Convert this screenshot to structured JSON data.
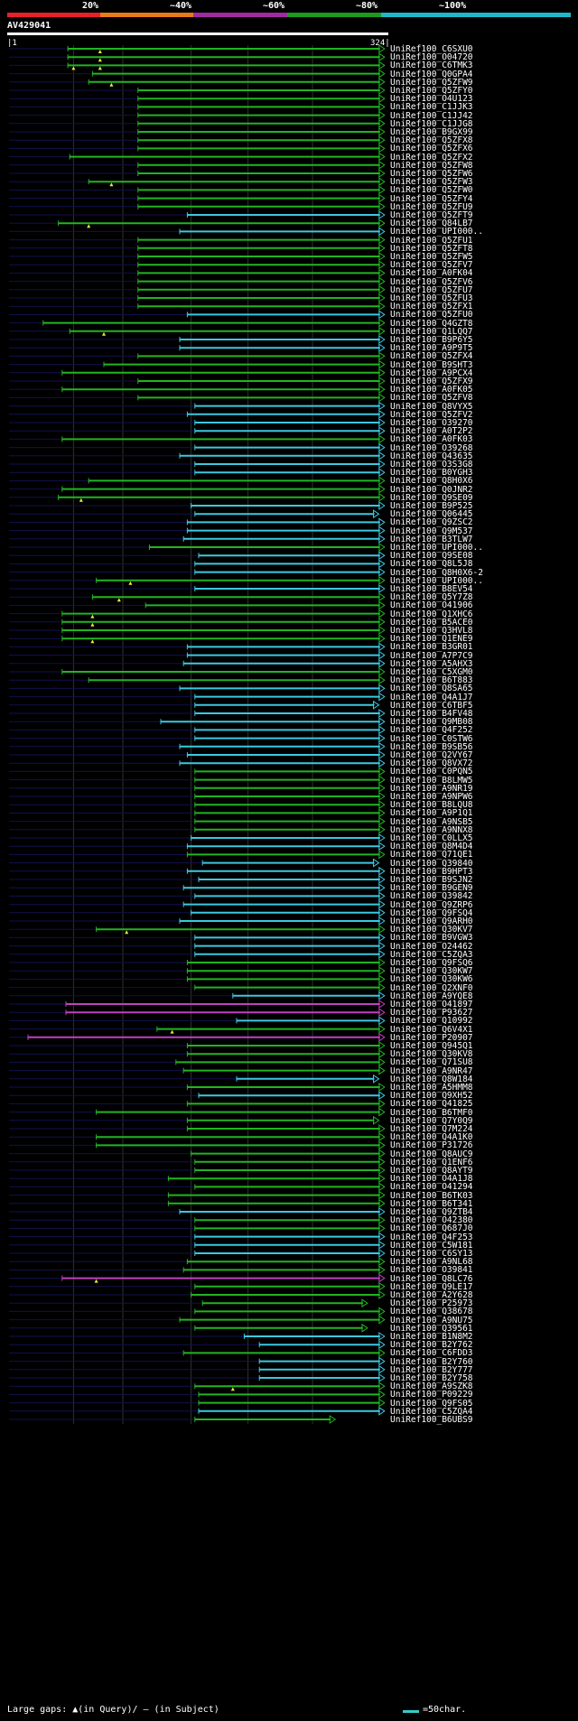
{
  "legend": {
    "labels": [
      "20%",
      "~40%",
      "~60%",
      "~80%",
      "~100%"
    ],
    "colors": [
      "#e8202a",
      "#e87a1a",
      "#a02aa0",
      "#1e9a1e",
      "#20b8c8"
    ]
  },
  "query": {
    "name": "AV429041",
    "scale_start": "1",
    "scale_end": "324"
  },
  "footer": {
    "gaps_text": "Large gaps: ▲(in Query)/ — (in Subject)",
    "key_text": "=50char."
  },
  "hits": [
    {
      "label": "UniRef100_C6SXU0",
      "s": 0.155,
      "e": 0.99,
      "c": "g",
      "m": [
        0.24
      ]
    },
    {
      "label": "UniRef100_O04720",
      "s": 0.155,
      "e": 0.99,
      "c": "g",
      "m": [
        0.24
      ]
    },
    {
      "label": "UniRef100_C6TMK3",
      "s": 0.155,
      "e": 0.99,
      "c": "g",
      "m": [
        0.17,
        0.24
      ]
    },
    {
      "label": "UniRef100_Q0GPA4",
      "s": 0.22,
      "e": 0.99,
      "c": "g"
    },
    {
      "label": "UniRef100_Q5ZFW9",
      "s": 0.21,
      "e": 0.99,
      "c": "g",
      "m": [
        0.27
      ]
    },
    {
      "label": "UniRef100_Q5ZFY0",
      "s": 0.34,
      "e": 0.99,
      "c": "g"
    },
    {
      "label": "UniRef100_O4U123",
      "s": 0.34,
      "e": 0.99,
      "c": "g"
    },
    {
      "label": "UniRef100_C1JJK3",
      "s": 0.34,
      "e": 0.99,
      "c": "g"
    },
    {
      "label": "UniRef100_C1JJ42",
      "s": 0.34,
      "e": 0.99,
      "c": "g"
    },
    {
      "label": "UniRef100_C1JJG8",
      "s": 0.34,
      "e": 0.99,
      "c": "g"
    },
    {
      "label": "UniRef100_B9GX99",
      "s": 0.34,
      "e": 0.99,
      "c": "g"
    },
    {
      "label": "UniRef100_Q5ZFX8",
      "s": 0.34,
      "e": 0.99,
      "c": "g"
    },
    {
      "label": "UniRef100_Q5ZFX6",
      "s": 0.34,
      "e": 0.99,
      "c": "g"
    },
    {
      "label": "UniRef100_Q5ZFX2",
      "s": 0.16,
      "e": 0.99,
      "c": "g"
    },
    {
      "label": "UniRef100_Q5ZFW8",
      "s": 0.34,
      "e": 0.99,
      "c": "g"
    },
    {
      "label": "UniRef100_Q5ZFW6",
      "s": 0.34,
      "e": 0.99,
      "c": "g"
    },
    {
      "label": "UniRef100_Q5ZFW3",
      "s": 0.21,
      "e": 0.99,
      "c": "g",
      "m": [
        0.27
      ]
    },
    {
      "label": "UniRef100_Q5ZFW0",
      "s": 0.34,
      "e": 0.99,
      "c": "g"
    },
    {
      "label": "UniRef100_Q5ZFY4",
      "s": 0.34,
      "e": 0.99,
      "c": "g"
    },
    {
      "label": "UniRef100_Q5ZFU9",
      "s": 0.34,
      "e": 0.99,
      "c": "g"
    },
    {
      "label": "UniRef100_Q5ZFT9",
      "s": 0.47,
      "e": 0.99,
      "c": "c"
    },
    {
      "label": "UniRef100_Q84LB7",
      "s": 0.13,
      "e": 0.99,
      "c": "g",
      "m": [
        0.21
      ]
    },
    {
      "label": "UniRef100_UPI000..",
      "s": 0.45,
      "e": 0.99,
      "c": "c"
    },
    {
      "label": "UniRef100_Q5ZFU1",
      "s": 0.34,
      "e": 0.99,
      "c": "g"
    },
    {
      "label": "UniRef100_Q5ZFT8",
      "s": 0.34,
      "e": 0.99,
      "c": "g"
    },
    {
      "label": "UniRef100_Q5ZFW5",
      "s": 0.34,
      "e": 0.99,
      "c": "g"
    },
    {
      "label": "UniRef100_Q5ZFV7",
      "s": 0.34,
      "e": 0.99,
      "c": "g"
    },
    {
      "label": "UniRef100_A0FK04",
      "s": 0.34,
      "e": 0.99,
      "c": "g"
    },
    {
      "label": "UniRef100_Q5ZFV6",
      "s": 0.34,
      "e": 0.99,
      "c": "g"
    },
    {
      "label": "UniRef100_Q5ZFU7",
      "s": 0.34,
      "e": 0.99,
      "c": "g"
    },
    {
      "label": "UniRef100_Q5ZFU3",
      "s": 0.34,
      "e": 0.99,
      "c": "g"
    },
    {
      "label": "UniRef100_Q5ZFX1",
      "s": 0.34,
      "e": 0.99,
      "c": "g"
    },
    {
      "label": "UniRef100_Q5ZFU0",
      "s": 0.47,
      "e": 0.99,
      "c": "c"
    },
    {
      "label": "UniRef100_Q4GZT8",
      "s": 0.09,
      "e": 0.99,
      "c": "g"
    },
    {
      "label": "UniRef100_Q1LQQ7",
      "s": 0.16,
      "e": 0.99,
      "c": "g",
      "m": [
        0.25
      ]
    },
    {
      "label": "UniRef100_B9P6Y5",
      "s": 0.45,
      "e": 0.99,
      "c": "c"
    },
    {
      "label": "UniRef100_A9P9T5",
      "s": 0.45,
      "e": 0.99,
      "c": "c"
    },
    {
      "label": "UniRef100_Q5ZFX4",
      "s": 0.34,
      "e": 0.99,
      "c": "g"
    },
    {
      "label": "UniRef100_B9SHT3",
      "s": 0.25,
      "e": 0.99,
      "c": "g"
    },
    {
      "label": "UniRef100_A9PCX4",
      "s": 0.14,
      "e": 0.99,
      "c": "g"
    },
    {
      "label": "UniRef100_Q5ZFX9",
      "s": 0.34,
      "e": 0.99,
      "c": "g"
    },
    {
      "label": "UniRef100_A0FK05",
      "s": 0.14,
      "e": 0.99,
      "c": "g"
    },
    {
      "label": "UniRef100_Q5ZFV8",
      "s": 0.34,
      "e": 0.99,
      "c": "g"
    },
    {
      "label": "UniRef100_Q8VYX5",
      "s": 0.49,
      "e": 0.99,
      "c": "c"
    },
    {
      "label": "UniRef100_Q5ZFV2",
      "s": 0.47,
      "e": 0.99,
      "c": "c"
    },
    {
      "label": "UniRef100_O39270",
      "s": 0.49,
      "e": 0.99,
      "c": "c"
    },
    {
      "label": "UniRef100_A0T2P2",
      "s": 0.49,
      "e": 0.99,
      "c": "c"
    },
    {
      "label": "UniRef100_A0FK03",
      "s": 0.14,
      "e": 0.99,
      "c": "g"
    },
    {
      "label": "UniRef100_O39268",
      "s": 0.49,
      "e": 0.99,
      "c": "c"
    },
    {
      "label": "UniRef100_Q43635",
      "s": 0.45,
      "e": 0.99,
      "c": "c"
    },
    {
      "label": "UniRef100_O3S3G8",
      "s": 0.49,
      "e": 0.99,
      "c": "c"
    },
    {
      "label": "UniRef100_B0YGH3",
      "s": 0.49,
      "e": 0.99,
      "c": "c"
    },
    {
      "label": "UniRef100_Q8H0X6",
      "s": 0.21,
      "e": 0.99,
      "c": "g"
    },
    {
      "label": "UniRef100_Q0JNR2",
      "s": 0.14,
      "e": 0.99,
      "c": "g"
    },
    {
      "label": "UniRef100_Q9SE09",
      "s": 0.13,
      "e": 0.99,
      "c": "g",
      "m": [
        0.19
      ]
    },
    {
      "label": "UniRef100_B9P525",
      "s": 0.48,
      "e": 0.99,
      "c": "c"
    },
    {
      "label": "UniRef100_Q06445",
      "s": 0.49,
      "e": 0.975,
      "c": "c"
    },
    {
      "label": "UniRef100_Q9ZSC2",
      "s": 0.47,
      "e": 0.99,
      "c": "c"
    },
    {
      "label": "UniRef100_Q9M537",
      "s": 0.47,
      "e": 0.99,
      "c": "c"
    },
    {
      "label": "UniRef100_B3TLW7",
      "s": 0.46,
      "e": 0.99,
      "c": "c"
    },
    {
      "label": "UniRef100_UPI000..",
      "s": 0.37,
      "e": 0.99,
      "c": "g"
    },
    {
      "label": "UniRef100_Q9SE08",
      "s": 0.5,
      "e": 0.99,
      "c": "c"
    },
    {
      "label": "UniRef100_Q8L5J8",
      "s": 0.49,
      "e": 0.99,
      "c": "c"
    },
    {
      "label": "UniRef100_Q8H0X6-2",
      "s": 0.49,
      "e": 0.99,
      "c": "c"
    },
    {
      "label": "UniRef100_UPI000..",
      "s": 0.23,
      "e": 0.99,
      "c": "g",
      "m": [
        0.32
      ]
    },
    {
      "label": "UniRef100_B8EV54",
      "s": 0.49,
      "e": 0.99,
      "c": "c"
    },
    {
      "label": "UniRef100_Q5Y7Z8",
      "s": 0.22,
      "e": 0.99,
      "c": "g",
      "m": [
        0.29
      ]
    },
    {
      "label": "UniRef100_O41906",
      "s": 0.36,
      "e": 0.99,
      "c": "g"
    },
    {
      "label": "UniRef100_Q1XHC6",
      "s": 0.14,
      "e": 0.99,
      "c": "g",
      "m": [
        0.22
      ]
    },
    {
      "label": "UniRef100_B5ACE0",
      "s": 0.14,
      "e": 0.99,
      "c": "g",
      "m": [
        0.22
      ]
    },
    {
      "label": "UniRef100_Q3HVL8",
      "s": 0.14,
      "e": 0.99,
      "c": "g"
    },
    {
      "label": "UniRef100_Q1ENE9",
      "s": 0.14,
      "e": 0.99,
      "c": "g",
      "m": [
        0.22
      ]
    },
    {
      "label": "UniRef100_B3GR01",
      "s": 0.47,
      "e": 0.99,
      "c": "c"
    },
    {
      "label": "UniRef100_A7P7C9",
      "s": 0.47,
      "e": 0.99,
      "c": "c"
    },
    {
      "label": "UniRef100_A5AHX3",
      "s": 0.46,
      "e": 0.99,
      "c": "c"
    },
    {
      "label": "UniRef100_C5XGM0",
      "s": 0.14,
      "e": 0.99,
      "c": "g"
    },
    {
      "label": "UniRef100_B6T883",
      "s": 0.21,
      "e": 0.99,
      "c": "g"
    },
    {
      "label": "UniRef100_Q8SA65",
      "s": 0.45,
      "e": 0.99,
      "c": "c"
    },
    {
      "label": "UniRef100_Q4A1J7",
      "s": 0.49,
      "e": 0.99,
      "c": "c"
    },
    {
      "label": "UniRef100_C6TBF5",
      "s": 0.49,
      "e": 0.975,
      "c": "c"
    },
    {
      "label": "UniRef100_B4FV48",
      "s": 0.49,
      "e": 0.99,
      "c": "c"
    },
    {
      "label": "UniRef100_Q9MB08",
      "s": 0.4,
      "e": 0.99,
      "c": "c"
    },
    {
      "label": "UniRef100_Q4F252",
      "s": 0.49,
      "e": 0.99,
      "c": "c"
    },
    {
      "label": "UniRef100_C0STW6",
      "s": 0.49,
      "e": 0.99,
      "c": "c"
    },
    {
      "label": "UniRef100_B9SB56",
      "s": 0.45,
      "e": 0.99,
      "c": "c"
    },
    {
      "label": "UniRef100_Q2VY67",
      "s": 0.47,
      "e": 0.99,
      "c": "c"
    },
    {
      "label": "UniRef100_Q8VX72",
      "s": 0.45,
      "e": 0.99,
      "c": "c"
    },
    {
      "label": "UniRef100_C0PQN5",
      "s": 0.49,
      "e": 0.99,
      "c": "g"
    },
    {
      "label": "UniRef100_B8LMW5",
      "s": 0.49,
      "e": 0.99,
      "c": "g"
    },
    {
      "label": "UniRef100_A9NR19",
      "s": 0.49,
      "e": 0.99,
      "c": "g"
    },
    {
      "label": "UniRef100_A9NPW6",
      "s": 0.49,
      "e": 0.99,
      "c": "g"
    },
    {
      "label": "UniRef100_B8LQU8",
      "s": 0.49,
      "e": 0.99,
      "c": "g"
    },
    {
      "label": "UniRef100_A9P1Q1",
      "s": 0.49,
      "e": 0.99,
      "c": "g"
    },
    {
      "label": "UniRef100_A9NSB5",
      "s": 0.49,
      "e": 0.99,
      "c": "g"
    },
    {
      "label": "UniRef100_A9NNX8",
      "s": 0.49,
      "e": 0.99,
      "c": "g"
    },
    {
      "label": "UniRef100_C0LLX5",
      "s": 0.48,
      "e": 0.99,
      "c": "c"
    },
    {
      "label": "UniRef100_Q8M4D4",
      "s": 0.47,
      "e": 0.99,
      "c": "c"
    },
    {
      "label": "UniRef100_Q71QE1",
      "s": 0.47,
      "e": 0.99,
      "c": "g"
    },
    {
      "label": "UniRef100_Q39840",
      "s": 0.51,
      "e": 0.975,
      "c": "c"
    },
    {
      "label": "UniRef100_B9HPT3",
      "s": 0.47,
      "e": 0.99,
      "c": "c"
    },
    {
      "label": "UniRef100_B9SJN2",
      "s": 0.5,
      "e": 0.99,
      "c": "c"
    },
    {
      "label": "UniRef100_B9GEN9",
      "s": 0.46,
      "e": 0.99,
      "c": "c"
    },
    {
      "label": "UniRef100_Q39842",
      "s": 0.49,
      "e": 0.99,
      "c": "c"
    },
    {
      "label": "UniRef100_Q9ZRP6",
      "s": 0.46,
      "e": 0.99,
      "c": "c"
    },
    {
      "label": "UniRef100_Q9FSQ4",
      "s": 0.48,
      "e": 0.99,
      "c": "c"
    },
    {
      "label": "UniRef100_Q9ARH0",
      "s": 0.45,
      "e": 0.99,
      "c": "c"
    },
    {
      "label": "UniRef100_Q30KV7",
      "s": 0.23,
      "e": 0.99,
      "c": "g",
      "m": [
        0.31
      ]
    },
    {
      "label": "UniRef100_B9VGW3",
      "s": 0.49,
      "e": 0.99,
      "c": "c"
    },
    {
      "label": "UniRef100_O24462",
      "s": 0.49,
      "e": 0.99,
      "c": "c"
    },
    {
      "label": "UniRef100_C5ZQA3",
      "s": 0.49,
      "e": 0.99,
      "c": "c"
    },
    {
      "label": "UniRef100_Q9FSQ6",
      "s": 0.47,
      "e": 0.99,
      "c": "g"
    },
    {
      "label": "UniRef100_Q30KW7",
      "s": 0.47,
      "e": 0.99,
      "c": "g"
    },
    {
      "label": "UniRef100_Q30KW6",
      "s": 0.47,
      "e": 0.99,
      "c": "g"
    },
    {
      "label": "UniRef100_Q2XNF0",
      "s": 0.49,
      "e": 0.99,
      "c": "g"
    },
    {
      "label": "UniRef100_A9YQE8",
      "s": 0.59,
      "e": 0.99,
      "c": "c"
    },
    {
      "label": "UniRef100_O41897",
      "s": 0.15,
      "e": 0.99,
      "c": "m"
    },
    {
      "label": "UniRef100_P93627",
      "s": 0.15,
      "e": 0.99,
      "c": "m"
    },
    {
      "label": "UniRef100_Q10992",
      "s": 0.6,
      "e": 0.99,
      "c": "c"
    },
    {
      "label": "UniRef100_Q6V4X1",
      "s": 0.39,
      "e": 0.99,
      "c": "g",
      "m": [
        0.43
      ]
    },
    {
      "label": "UniRef100_P20907",
      "s": 0.05,
      "e": 0.99,
      "c": "m"
    },
    {
      "label": "UniRef100_Q945Q1",
      "s": 0.47,
      "e": 0.99,
      "c": "g"
    },
    {
      "label": "UniRef100_Q30KV8",
      "s": 0.47,
      "e": 0.99,
      "c": "g"
    },
    {
      "label": "UniRef100_Q71SU8",
      "s": 0.44,
      "e": 0.99,
      "c": "g"
    },
    {
      "label": "UniRef100_A9NR47",
      "s": 0.46,
      "e": 0.99,
      "c": "g"
    },
    {
      "label": "UniRef100_Q8W184",
      "s": 0.6,
      "e": 0.975,
      "c": "c"
    },
    {
      "label": "UniRef100_A5HMM8",
      "s": 0.47,
      "e": 0.99,
      "c": "g"
    },
    {
      "label": "UniRef100_Q9XH52",
      "s": 0.5,
      "e": 0.99,
      "c": "c"
    },
    {
      "label": "UniRef100_Q41825",
      "s": 0.47,
      "e": 0.99,
      "c": "g"
    },
    {
      "label": "UniRef100_B6TMF0",
      "s": 0.23,
      "e": 0.99,
      "c": "g"
    },
    {
      "label": "UniRef100_Q7Y0Q9",
      "s": 0.47,
      "e": 0.975,
      "c": "g"
    },
    {
      "label": "UniRef100_Q7M224",
      "s": 0.47,
      "e": 0.99,
      "c": "g"
    },
    {
      "label": "UniRef100_Q4A1K0",
      "s": 0.23,
      "e": 0.99,
      "c": "g"
    },
    {
      "label": "UniRef100_P31726",
      "s": 0.23,
      "e": 0.99,
      "c": "g"
    },
    {
      "label": "UniRef100_Q8AUC9",
      "s": 0.48,
      "e": 0.99,
      "c": "g"
    },
    {
      "label": "UniRef100_Q1ENF6",
      "s": 0.49,
      "e": 0.99,
      "c": "g"
    },
    {
      "label": "UniRef100_Q8AYT9",
      "s": 0.49,
      "e": 0.99,
      "c": "g"
    },
    {
      "label": "UniRef100_O4A1J8",
      "s": 0.42,
      "e": 0.99,
      "c": "g"
    },
    {
      "label": "UniRef100_O41294",
      "s": 0.49,
      "e": 0.99,
      "c": "g"
    },
    {
      "label": "UniRef100_B6TK03",
      "s": 0.42,
      "e": 0.99,
      "c": "g"
    },
    {
      "label": "UniRef100_B6T341",
      "s": 0.42,
      "e": 0.99,
      "c": "g"
    },
    {
      "label": "UniRef100_Q9ZTB4",
      "s": 0.45,
      "e": 0.99,
      "c": "c"
    },
    {
      "label": "UniRef100_O42380",
      "s": 0.49,
      "e": 0.99,
      "c": "g"
    },
    {
      "label": "UniRef100_Q687J0",
      "s": 0.49,
      "e": 0.99,
      "c": "g"
    },
    {
      "label": "UniRef100_Q4F253",
      "s": 0.49,
      "e": 0.99,
      "c": "c"
    },
    {
      "label": "UniRef100_C5W181",
      "s": 0.49,
      "e": 0.99,
      "c": "c"
    },
    {
      "label": "UniRef100_C6SY13",
      "s": 0.49,
      "e": 0.99,
      "c": "c"
    },
    {
      "label": "UniRef100_A9NL68",
      "s": 0.47,
      "e": 0.99,
      "c": "g"
    },
    {
      "label": "UniRef100_O39841",
      "s": 0.46,
      "e": 0.99,
      "c": "g"
    },
    {
      "label": "UniRef100_Q8LC76",
      "s": 0.14,
      "e": 0.99,
      "c": "m",
      "m": [
        0.23
      ]
    },
    {
      "label": "UniRef100_Q9LE17",
      "s": 0.49,
      "e": 0.99,
      "c": "g"
    },
    {
      "label": "UniRef100_A2Y628",
      "s": 0.48,
      "e": 0.99,
      "c": "g"
    },
    {
      "label": "UniRef100_P25973",
      "s": 0.51,
      "e": 0.945,
      "c": "g"
    },
    {
      "label": "UniRef100_Q38678",
      "s": 0.49,
      "e": 0.99,
      "c": "g"
    },
    {
      "label": "UniRef100_A9NU75",
      "s": 0.45,
      "e": 0.99,
      "c": "g"
    },
    {
      "label": "UniRef100_Q39561",
      "s": 0.49,
      "e": 0.945,
      "c": "g"
    },
    {
      "label": "UniRef100_B1N8M2",
      "s": 0.62,
      "e": 0.99,
      "c": "c"
    },
    {
      "label": "UniRef100_B2Y762",
      "s": 0.66,
      "e": 0.99,
      "c": "c"
    },
    {
      "label": "UniRef100_C6FDD3",
      "s": 0.46,
      "e": 0.99,
      "c": "g"
    },
    {
      "label": "UniRef100_B2Y760",
      "s": 0.66,
      "e": 0.99,
      "c": "c"
    },
    {
      "label": "UniRef100_B2Y777",
      "s": 0.66,
      "e": 0.99,
      "c": "c"
    },
    {
      "label": "UniRef100_B2Y758",
      "s": 0.66,
      "e": 0.99,
      "c": "c"
    },
    {
      "label": "UniRef100_A9SZK8",
      "s": 0.49,
      "e": 0.99,
      "c": "g",
      "m": [
        0.59
      ]
    },
    {
      "label": "UniRef100_P09229",
      "s": 0.5,
      "e": 0.99,
      "c": "g"
    },
    {
      "label": "UniRef100_Q9FS05",
      "s": 0.5,
      "e": 0.99,
      "c": "g"
    },
    {
      "label": "UniRef100_C5ZQA4",
      "s": 0.5,
      "e": 0.99,
      "c": "c"
    },
    {
      "label": "UniRef100_B6UBS9",
      "s": 0.49,
      "e": 0.86,
      "c": "g"
    }
  ]
}
